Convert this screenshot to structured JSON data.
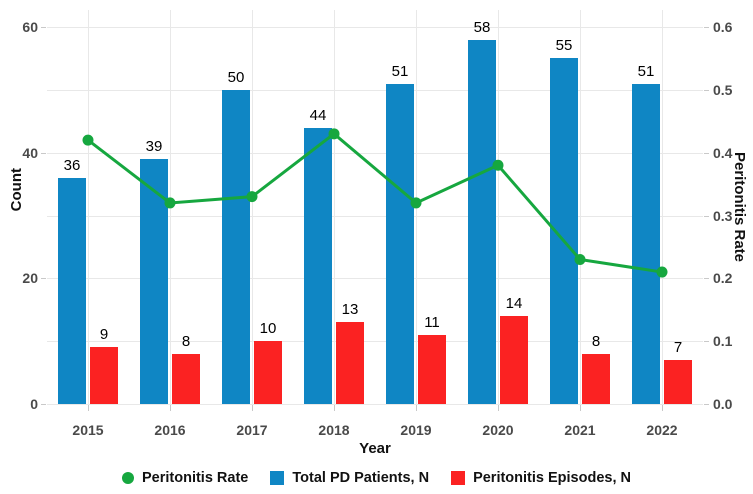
{
  "chart_data": {
    "type": "bar",
    "subtype": "grouped-bars-with-line-dual-axis",
    "categories": [
      "2015",
      "2016",
      "2017",
      "2018",
      "2019",
      "2020",
      "2021",
      "2022"
    ],
    "series": [
      {
        "name": "Total PD Patients, N",
        "kind": "bar",
        "axis": "left",
        "color": "#0f86c4",
        "values": [
          36,
          39,
          50,
          44,
          51,
          58,
          55,
          51
        ]
      },
      {
        "name": "Peritonitis Episodes, N",
        "kind": "bar",
        "axis": "left",
        "color": "#fb2222",
        "values": [
          9,
          8,
          10,
          13,
          11,
          14,
          8,
          7
        ]
      },
      {
        "name": "Peritonitis Rate",
        "kind": "line",
        "axis": "right",
        "color": "#16a73f",
        "values": [
          0.42,
          0.32,
          0.33,
          0.43,
          0.32,
          0.38,
          0.23,
          0.21
        ]
      }
    ],
    "title": "",
    "xlabel": "Year",
    "ylabel_left": "Count",
    "ylabel_right": "Peritonitis Rate",
    "ylim_left": [
      0,
      60
    ],
    "ylim_right": [
      0,
      0.6
    ],
    "yticks_left": [
      0,
      20,
      40,
      60
    ],
    "yticks_right": [
      "0.0",
      "0.1",
      "0.2",
      "0.3",
      "0.4",
      "0.5",
      "0.6"
    ],
    "grid": true,
    "gridline_color": "#e8e8e8",
    "bar_value_labels": true,
    "legend_position": "bottom"
  },
  "axes": {
    "left_title": "Count",
    "right_title": "Peritonitis Rate",
    "x_title": "Year"
  },
  "legend": {
    "items": [
      {
        "label": "Peritonitis Rate",
        "marker": "circle",
        "color": "#16a73f"
      },
      {
        "label": "Total PD Patients, N",
        "marker": "square",
        "color": "#0f86c4"
      },
      {
        "label": "Peritonitis Episodes, N",
        "marker": "square",
        "color": "#fb2222"
      }
    ]
  }
}
